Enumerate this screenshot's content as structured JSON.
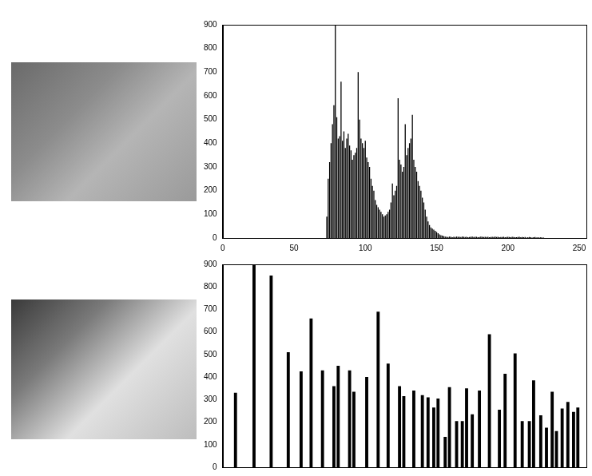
{
  "chart_data": [
    {
      "type": "bar",
      "x": [
        73,
        74,
        75,
        76,
        77,
        78,
        79,
        80,
        81,
        82,
        83,
        84,
        85,
        86,
        87,
        88,
        89,
        90,
        91,
        92,
        93,
        94,
        95,
        96,
        97,
        98,
        99,
        100,
        101,
        102,
        103,
        104,
        105,
        106,
        107,
        108,
        109,
        110,
        111,
        112,
        113,
        114,
        115,
        116,
        117,
        118,
        119,
        120,
        121,
        122,
        123,
        124,
        125,
        126,
        127,
        128,
        129,
        130,
        131,
        132,
        133,
        134,
        135,
        136,
        137,
        138,
        139,
        140,
        141,
        142,
        143,
        144,
        145,
        146,
        147,
        148,
        149,
        150,
        151,
        152,
        153,
        154,
        155,
        156,
        157,
        158,
        159,
        160,
        161,
        162,
        163,
        164,
        165,
        166,
        167,
        168,
        169,
        170,
        171,
        172,
        173,
        174,
        175,
        176,
        177,
        178,
        179,
        180,
        181,
        182,
        183,
        184,
        185,
        186,
        187,
        188,
        189,
        190,
        191,
        192,
        193,
        194,
        195,
        196,
        197,
        198,
        199,
        200,
        201,
        202,
        203,
        204,
        205,
        206,
        207,
        208,
        209,
        210,
        211,
        212,
        213,
        214,
        215,
        216,
        217,
        218,
        219,
        220,
        221,
        222,
        223,
        224,
        225
      ],
      "values": [
        90,
        250,
        320,
        400,
        480,
        560,
        900,
        510,
        420,
        430,
        660,
        410,
        450,
        380,
        420,
        440,
        390,
        370,
        330,
        350,
        360,
        380,
        700,
        500,
        420,
        400,
        380,
        410,
        340,
        320,
        300,
        250,
        220,
        200,
        160,
        140,
        130,
        120,
        110,
        100,
        90,
        95,
        100,
        110,
        120,
        150,
        230,
        180,
        200,
        220,
        590,
        330,
        310,
        280,
        300,
        480,
        350,
        380,
        400,
        420,
        520,
        330,
        300,
        280,
        240,
        220,
        200,
        170,
        150,
        120,
        90,
        70,
        55,
        45,
        40,
        35,
        30,
        25,
        20,
        15,
        12,
        10,
        8,
        6,
        5,
        4,
        6,
        5,
        3,
        5,
        4,
        6,
        5,
        5,
        4,
        6,
        5,
        4,
        5,
        3,
        4,
        5,
        6,
        4,
        5,
        5,
        3,
        4,
        6,
        5,
        4,
        5,
        4,
        5,
        3,
        4,
        5,
        4,
        6,
        4,
        5,
        3,
        4,
        4,
        5,
        3,
        4,
        5,
        4,
        3,
        5,
        4,
        3,
        3,
        4,
        5,
        3,
        4,
        3,
        4,
        2,
        3,
        4,
        3,
        2,
        3,
        4,
        2,
        3,
        2,
        3,
        2,
        2
      ],
      "color": "#000000",
      "xlim": [
        0,
        255
      ],
      "xticks": [
        0,
        50,
        100,
        150,
        200,
        250
      ],
      "ylim": [
        0,
        900
      ],
      "yticks": [
        0,
        100,
        200,
        300,
        400,
        500,
        600,
        700,
        800,
        900
      ],
      "grid": false
    },
    {
      "type": "bar",
      "x": [
        9,
        22,
        34,
        46,
        55,
        62,
        70,
        78,
        81,
        89,
        92,
        101,
        109,
        116,
        124,
        127,
        134,
        140,
        144,
        148,
        151,
        156,
        159,
        164,
        168,
        171,
        175,
        180,
        187,
        194,
        198,
        205,
        210,
        215,
        218,
        223,
        227,
        231,
        234,
        238,
        242,
        246,
        249
      ],
      "values": [
        330,
        900,
        850,
        510,
        425,
        660,
        430,
        360,
        450,
        430,
        335,
        400,
        690,
        460,
        360,
        315,
        340,
        320,
        310,
        265,
        305,
        135,
        355,
        205,
        205,
        350,
        235,
        340,
        590,
        255,
        415,
        505,
        205,
        205,
        385,
        230,
        175,
        335,
        160,
        260,
        290,
        245,
        265
      ],
      "color": "#000000",
      "xlim": [
        0,
        255
      ],
      "ylim": [
        0,
        900
      ],
      "yticks": [
        0,
        100,
        200,
        300,
        400,
        500,
        600,
        700,
        800,
        900
      ],
      "grid": false,
      "tick_labels": "y"
    }
  ]
}
